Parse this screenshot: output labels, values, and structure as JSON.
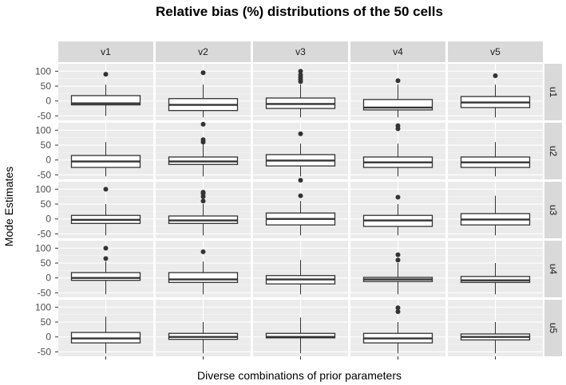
{
  "chart_data": {
    "type": "boxplot",
    "title": "Relative bias (%) distributions of the 50 cells",
    "xlabel": "Diverse combinations of prior parameters",
    "ylabel": "Mode Estimates",
    "columns": [
      "v1",
      "v2",
      "v3",
      "v4",
      "v5"
    ],
    "rows": [
      "u1",
      "u2",
      "u3",
      "u4",
      "u5"
    ],
    "yticks": [
      -50,
      0,
      50,
      100
    ],
    "ylim": [
      -65,
      125
    ],
    "grid": true,
    "facets": [
      {
        "row": "u1",
        "col": "v1",
        "q1": -13,
        "median": -8,
        "q3": 18,
        "lower": -50,
        "upper": 55,
        "outliers": [
          90
        ]
      },
      {
        "row": "u1",
        "col": "v2",
        "q1": -32,
        "median": -13,
        "q3": 8,
        "lower": -55,
        "upper": 55,
        "outliers": [
          95
        ]
      },
      {
        "row": "u1",
        "col": "v3",
        "q1": -25,
        "median": -10,
        "q3": 10,
        "lower": -55,
        "upper": 55,
        "outliers": [
          65,
          72,
          80,
          88,
          100
        ]
      },
      {
        "row": "u1",
        "col": "v4",
        "q1": -30,
        "median": -22,
        "q3": 5,
        "lower": -55,
        "upper": 55,
        "outliers": [
          68
        ]
      },
      {
        "row": "u1",
        "col": "v5",
        "q1": -22,
        "median": -5,
        "q3": 15,
        "lower": -55,
        "upper": 55,
        "outliers": [
          85
        ]
      },
      {
        "row": "u2",
        "col": "v1",
        "q1": -25,
        "median": -5,
        "q3": 15,
        "lower": -55,
        "upper": 60,
        "outliers": []
      },
      {
        "row": "u2",
        "col": "v2",
        "q1": -15,
        "median": -5,
        "q3": 10,
        "lower": -55,
        "upper": 55,
        "outliers": [
          60,
          68,
          120
        ]
      },
      {
        "row": "u2",
        "col": "v3",
        "q1": -20,
        "median": -2,
        "q3": 18,
        "lower": -55,
        "upper": 55,
        "outliers": [
          88
        ]
      },
      {
        "row": "u2",
        "col": "v4",
        "q1": -25,
        "median": -8,
        "q3": 10,
        "lower": -55,
        "upper": 55,
        "outliers": [
          105,
          115
        ]
      },
      {
        "row": "u2",
        "col": "v5",
        "q1": -25,
        "median": -8,
        "q3": 10,
        "lower": -55,
        "upper": 60,
        "outliers": []
      },
      {
        "row": "u3",
        "col": "v1",
        "q1": -15,
        "median": -3,
        "q3": 12,
        "lower": -55,
        "upper": 50,
        "outliers": [
          100
        ]
      },
      {
        "row": "u3",
        "col": "v2",
        "q1": -15,
        "median": -5,
        "q3": 10,
        "lower": -55,
        "upper": 50,
        "outliers": [
          60,
          75,
          85,
          90
        ]
      },
      {
        "row": "u3",
        "col": "v3",
        "q1": -20,
        "median": 0,
        "q3": 20,
        "lower": -55,
        "upper": 60,
        "outliers": [
          78,
          130
        ]
      },
      {
        "row": "u3",
        "col": "v4",
        "q1": -25,
        "median": -5,
        "q3": 12,
        "lower": -55,
        "upper": 50,
        "outliers": [
          73
        ]
      },
      {
        "row": "u3",
        "col": "v5",
        "q1": -20,
        "median": -2,
        "q3": 18,
        "lower": -55,
        "upper": 78,
        "outliers": []
      },
      {
        "row": "u4",
        "col": "v1",
        "q1": -8,
        "median": 0,
        "q3": 18,
        "lower": -55,
        "upper": 55,
        "outliers": [
          65,
          100
        ]
      },
      {
        "row": "u4",
        "col": "v2",
        "q1": -15,
        "median": -5,
        "q3": 18,
        "lower": -55,
        "upper": 55,
        "outliers": [
          88
        ]
      },
      {
        "row": "u4",
        "col": "v3",
        "q1": -20,
        "median": -5,
        "q3": 8,
        "lower": -55,
        "upper": 60,
        "outliers": []
      },
      {
        "row": "u4",
        "col": "v4",
        "q1": -12,
        "median": -5,
        "q3": 2,
        "lower": -55,
        "upper": 50,
        "outliers": [
          60,
          78
        ]
      },
      {
        "row": "u4",
        "col": "v5",
        "q1": -15,
        "median": -8,
        "q3": 5,
        "lower": -55,
        "upper": 50,
        "outliers": []
      },
      {
        "row": "u5",
        "col": "v1",
        "q1": -20,
        "median": -5,
        "q3": 15,
        "lower": -55,
        "upper": 68,
        "outliers": []
      },
      {
        "row": "u5",
        "col": "v2",
        "q1": -8,
        "median": 0,
        "q3": 12,
        "lower": -55,
        "upper": 50,
        "outliers": []
      },
      {
        "row": "u5",
        "col": "v3",
        "q1": -3,
        "median": 0,
        "q3": 12,
        "lower": -55,
        "upper": 65,
        "outliers": []
      },
      {
        "row": "u5",
        "col": "v4",
        "q1": -20,
        "median": -5,
        "q3": 12,
        "lower": -55,
        "upper": 50,
        "outliers": [
          85,
          98
        ]
      },
      {
        "row": "u5",
        "col": "v5",
        "q1": -10,
        "median": 0,
        "q3": 10,
        "lower": -55,
        "upper": 50,
        "outliers": []
      }
    ],
    "colors": {
      "panel_bg": "#ebebeb",
      "grid_major": "#ffffff",
      "grid_minor": "#f5f5f5",
      "strip_bg": "#d9d9d9",
      "box_fill": "#ffffff",
      "box_line": "#333333",
      "outlier": "#333333"
    }
  }
}
